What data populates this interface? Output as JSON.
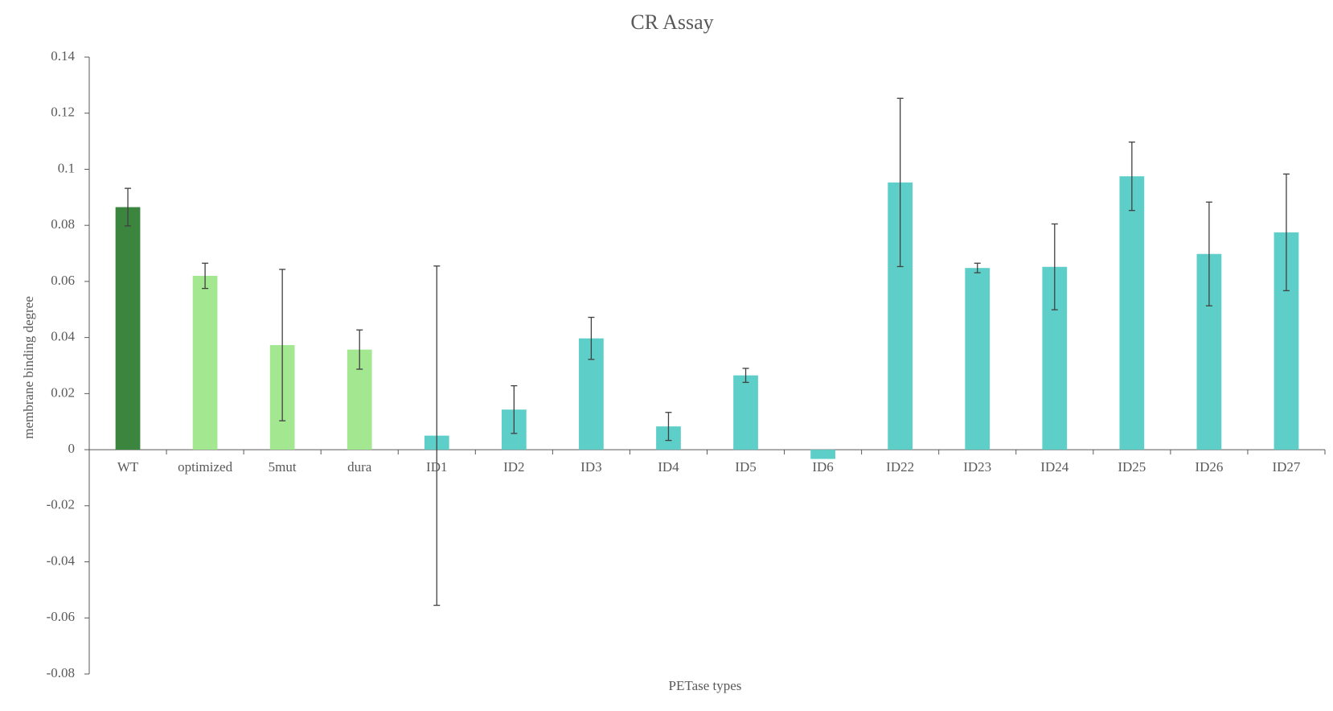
{
  "chart_data": {
    "type": "bar",
    "title": "CR Assay",
    "x_label": "PETase  types",
    "y_label": "membrane binding degree",
    "categories": [
      "WT",
      "optimized",
      "5mut",
      "dura",
      "ID1",
      "ID2",
      "ID3",
      "ID4",
      "ID5",
      "ID6",
      "ID22",
      "ID23",
      "ID24",
      "ID25",
      "ID26",
      "ID27"
    ],
    "values": [
      0.0865,
      0.062,
      0.0373,
      0.0357,
      0.005,
      0.0143,
      0.0397,
      0.0083,
      0.0265,
      -0.0033,
      0.0953,
      0.0648,
      0.0652,
      0.0975,
      0.0698,
      0.0775
    ],
    "errors": [
      0.0067,
      0.0045,
      0.027,
      0.007,
      0.0605,
      0.0085,
      0.0075,
      0.005,
      0.0025,
      null,
      0.03,
      0.0017,
      0.0153,
      0.0122,
      0.0185,
      0.0208
    ],
    "colors": [
      "#3b853f",
      "#a3e891",
      "#a3e891",
      "#a3e891",
      "#5ecfc8",
      "#5ecfc8",
      "#5ecfc8",
      "#5ecfc8",
      "#5ecfc8",
      "#5ecfc8",
      "#5ecfc8",
      "#5ecfc8",
      "#5ecfc8",
      "#5ecfc8",
      "#5ecfc8",
      "#5ecfc8"
    ],
    "ylim": [
      -0.08,
      0.14
    ],
    "yticks": [
      -0.08,
      -0.06,
      -0.04,
      -0.02,
      0,
      0.02,
      0.04,
      0.06,
      0.08,
      0.1,
      0.12,
      0.14
    ],
    "grid": false
  }
}
